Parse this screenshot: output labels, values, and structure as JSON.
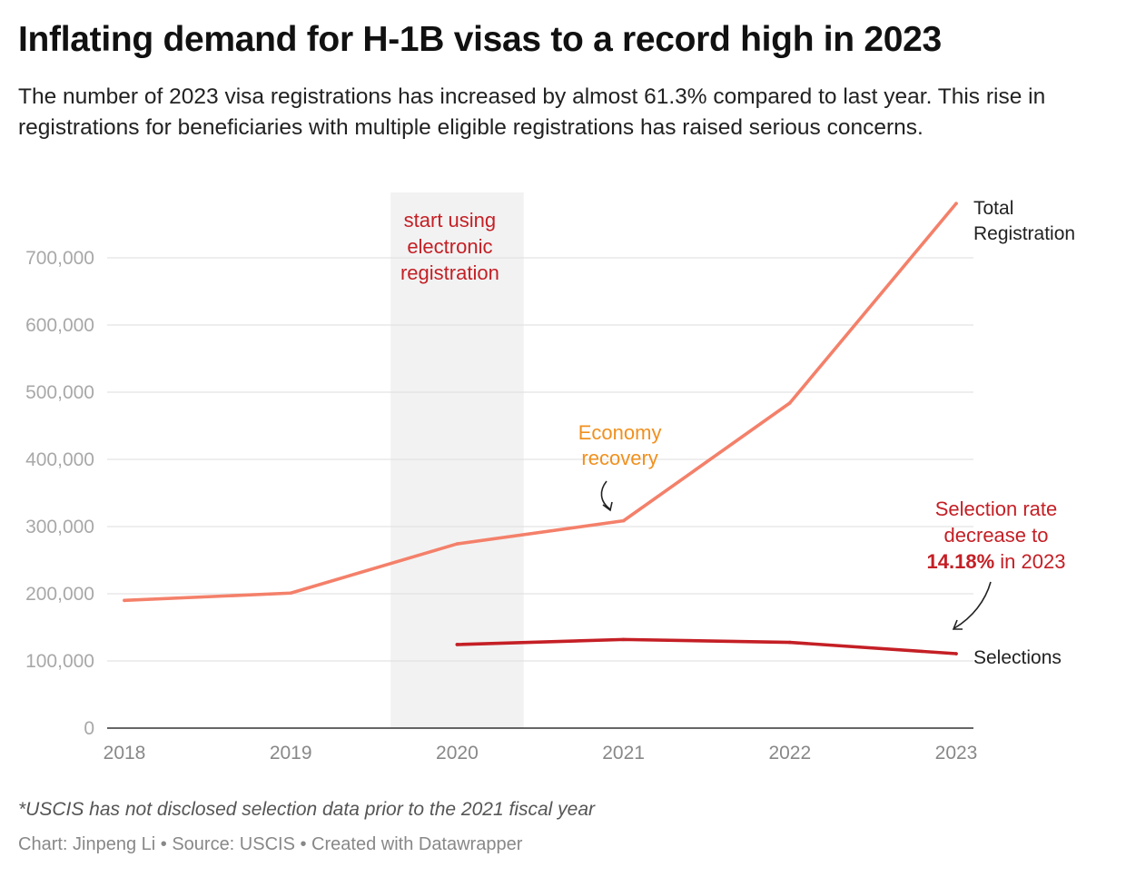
{
  "header": {
    "title": "Inflating demand for H-1B visas to a record high in 2023",
    "subtitle": "The number of 2023 visa registrations has increased by almost 61.3% compared to last year. This rise in registrations for beneficiaries with multiple eligible registrations has raised serious concerns."
  },
  "footer": {
    "note": "*USCIS has not disclosed selection data prior to the 2021 fiscal year",
    "byline": "Chart: Jinpeng Li • Source: USCIS • Created with Datawrapper"
  },
  "chart_data": {
    "type": "line",
    "x": [
      2018,
      2019,
      2020,
      2021,
      2022,
      2023
    ],
    "y_ticks": [
      "0",
      "100,000",
      "200,000",
      "300,000",
      "400,000",
      "500,000",
      "600,000",
      "700,000"
    ],
    "ylim": [
      0,
      780000
    ],
    "grid": true,
    "series": [
      {
        "name": "Total Registration",
        "name_lines": [
          "Total",
          "Registration"
        ],
        "color": "#f4806a",
        "values": [
          190098,
          201011,
          274237,
          308613,
          483927,
          780884
        ]
      },
      {
        "name": "Selections",
        "name_lines": [
          "Selections"
        ],
        "color": "#c41f25",
        "values": [
          null,
          null,
          124415,
          131924,
          127600,
          110791
        ]
      }
    ],
    "highlight_band": {
      "x_from": 2019.6,
      "x_to": 2020.4,
      "color": "#f2f2f2"
    },
    "annotations": [
      {
        "id": "electronic",
        "lines": [
          "start using",
          "electronic",
          "registration"
        ],
        "color": "#c41f25",
        "x": 2020
      },
      {
        "id": "economy",
        "lines": [
          "Economy",
          "recovery"
        ],
        "color": "#f0901e",
        "x": 2021
      },
      {
        "id": "selection-rate",
        "lines": [
          "Selection rate",
          "decrease to"
        ],
        "bold_value": "14.18%",
        "suffix": " in 2023",
        "color": "#c41f25",
        "x": 2023
      }
    ]
  }
}
